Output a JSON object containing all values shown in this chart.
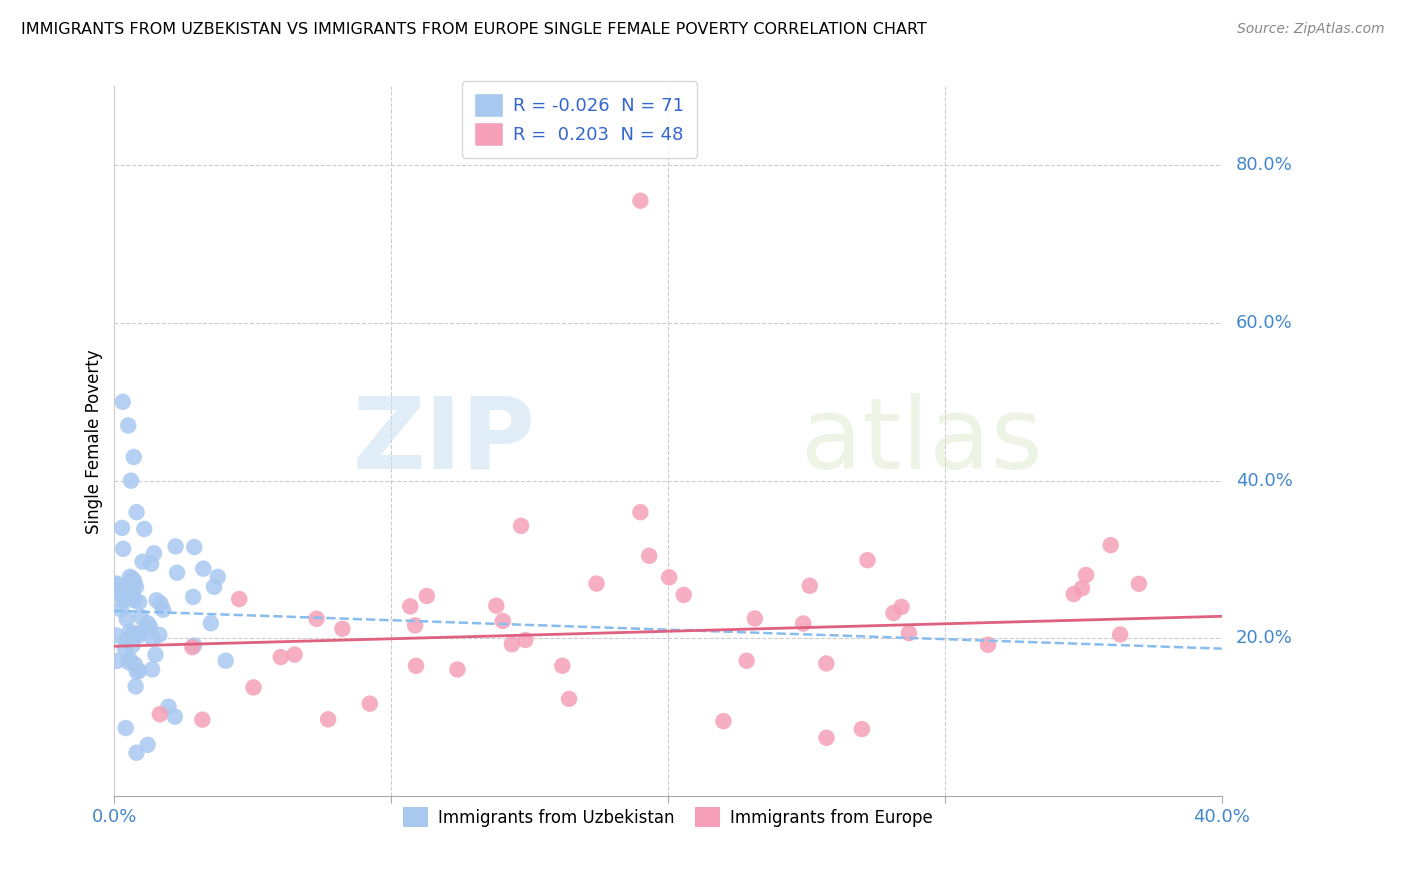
{
  "title": "IMMIGRANTS FROM UZBEKISTAN VS IMMIGRANTS FROM EUROPE SINGLE FEMALE POVERTY CORRELATION CHART",
  "source": "Source: ZipAtlas.com",
  "ylabel": "Single Female Poverty",
  "xlim": [
    0.0,
    0.4
  ],
  "ylim": [
    0.0,
    0.9
  ],
  "legend_R_uzbekistan": "-0.026",
  "legend_N_uzbekistan": "71",
  "legend_R_europe": "0.203",
  "legend_N_europe": "48",
  "color_uzbekistan": "#a8c8f0",
  "color_europe": "#f5a0b8",
  "line_color_uzbekistan": "#88bbee",
  "line_color_europe": "#e06080",
  "watermark_zip": "ZIP",
  "watermark_atlas": "atlas",
  "right_ytick_vals": [
    0.2,
    0.4,
    0.6,
    0.8
  ],
  "right_ytick_labels": [
    "20.0%",
    "40.0%",
    "60.0%",
    "80.0%"
  ],
  "uz_line_intercept": 0.235,
  "uz_line_slope": -0.12,
  "eu_line_intercept": 0.19,
  "eu_line_slope": 0.095
}
